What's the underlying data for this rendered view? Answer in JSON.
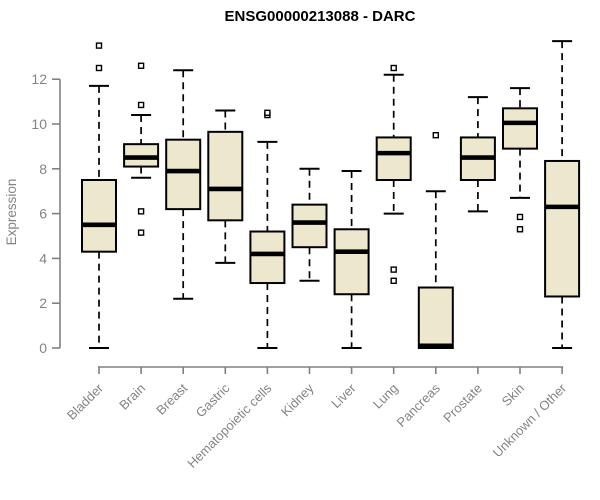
{
  "chart_data": {
    "type": "boxplot",
    "title": "ENSG00000213088 - DARC",
    "ylabel": "Expression",
    "xlabel": "",
    "ylim": [
      0,
      12
    ],
    "yticks": [
      0,
      2,
      4,
      6,
      8,
      10,
      12
    ],
    "grid": false,
    "legend": "none",
    "categories": [
      "Bladder",
      "Brain",
      "Breast",
      "Gastric",
      "Hematopoietic cells",
      "Kidney",
      "Liver",
      "Lung",
      "Pancreas",
      "Prostate",
      "Skin",
      "Unknown / Other"
    ],
    "series": [
      {
        "category": "Bladder",
        "whisker_low": 0.0,
        "q1": 4.3,
        "median": 5.5,
        "q3": 7.5,
        "whisker_high": 11.7,
        "outliers": [
          13.5,
          12.5
        ]
      },
      {
        "category": "Brain",
        "whisker_low": 7.6,
        "q1": 8.1,
        "median": 8.5,
        "q3": 9.1,
        "whisker_high": 10.4,
        "outliers": [
          12.6,
          10.85,
          6.1,
          5.15
        ]
      },
      {
        "category": "Breast",
        "whisker_low": 2.2,
        "q1": 6.2,
        "median": 7.9,
        "q3": 9.3,
        "whisker_high": 12.4,
        "outliers": []
      },
      {
        "category": "Gastric",
        "whisker_low": 3.8,
        "q1": 5.7,
        "median": 7.1,
        "q3": 9.65,
        "whisker_high": 10.6,
        "outliers": []
      },
      {
        "category": "Hematopoietic cells",
        "whisker_low": 0.0,
        "q1": 2.9,
        "median": 4.2,
        "q3": 5.2,
        "whisker_high": 9.2,
        "outliers": [
          10.4,
          10.5
        ]
      },
      {
        "category": "Kidney",
        "whisker_low": 3.0,
        "q1": 4.5,
        "median": 5.6,
        "q3": 6.4,
        "whisker_high": 8.0,
        "outliers": []
      },
      {
        "category": "Liver",
        "whisker_low": 0.0,
        "q1": 2.4,
        "median": 4.3,
        "q3": 5.3,
        "whisker_high": 7.9,
        "outliers": []
      },
      {
        "category": "Lung",
        "whisker_low": 6.0,
        "q1": 7.5,
        "median": 8.7,
        "q3": 9.4,
        "whisker_high": 12.2,
        "outliers": [
          12.5,
          3.5,
          3.0
        ]
      },
      {
        "category": "Pancreas",
        "whisker_low": 0.0,
        "q1": 0.0,
        "median": 0.1,
        "q3": 2.7,
        "whisker_high": 7.0,
        "outliers": [
          9.5
        ]
      },
      {
        "category": "Prostate",
        "whisker_low": 6.1,
        "q1": 7.5,
        "median": 8.5,
        "q3": 9.4,
        "whisker_high": 11.2,
        "outliers": []
      },
      {
        "category": "Skin",
        "whisker_low": 6.7,
        "q1": 8.9,
        "median": 10.05,
        "q3": 10.7,
        "whisker_high": 11.6,
        "outliers": [
          5.85,
          5.3
        ]
      },
      {
        "category": "Unknown / Other",
        "whisker_low": 0.0,
        "q1": 2.3,
        "median": 6.3,
        "q3": 8.35,
        "whisker_high": 13.7,
        "outliers": []
      }
    ],
    "colors": {
      "box_fill": "#EDE8CD",
      "box_border": "#000000",
      "median": "#000000",
      "axis": "#808080",
      "axis_text": "#848484",
      "title": "#000000",
      "background": "#FFFFFF"
    }
  }
}
